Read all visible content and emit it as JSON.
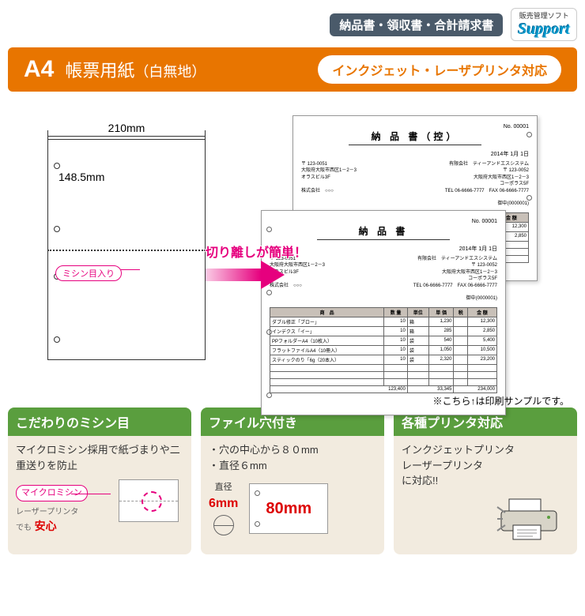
{
  "header": {
    "badge": "納品書・領収書・合計請求書",
    "support_small": "販売管理ソフト",
    "support_text": "Support"
  },
  "title": {
    "main": "A4",
    "sub": "帳票用紙",
    "small": "（白無地）",
    "pill": "インクジェット・レーザプリンタ対応"
  },
  "diagram": {
    "width_label": "210mm",
    "height_label": "148.5mm",
    "perforation_label": "ミシン目入り"
  },
  "arrow": {
    "label": "切り離しが簡単！"
  },
  "sample": {
    "doc1_title": "納 品 書（控）",
    "doc2_title": "納 品 書",
    "doc_no": "No. 00001",
    "doc_date": "2014年 1月 1日",
    "addr_left": "〒 123-0051\n大阪府大阪市西区1－2－3\nオラスビル3F\n\n株式会社　○○○",
    "addr_right": "有限会社　ティーアンドエスシステム\n〒 123-0052\n大阪府大阪市西区1－2－3\nコーポラス5F\nTEL 06-6666-7777　FAX 06-6666-7777\n\n御中(0000001)",
    "headers": [
      "商　品",
      "数 量",
      "単位",
      "単 価",
      "税",
      "金 額"
    ],
    "rows1": [
      [
        "ダブル修正「ブロー」",
        "10",
        "箱",
        "1,230",
        "",
        "12,300"
      ],
      [
        "レッドテス「イー」",
        "10",
        "箱",
        "285",
        "",
        "2,850"
      ]
    ],
    "rows2": [
      [
        "ダブル修正「ブロー」",
        "10",
        "箱",
        "1,230",
        "",
        "12,300"
      ],
      [
        "インデクス「イー」",
        "10",
        "箱",
        "285",
        "",
        "2,850"
      ],
      [
        "PPフォルダーA4（10枚入）",
        "10",
        "袋",
        "540",
        "",
        "5,400"
      ],
      [
        "フラットファイルA4（10冊入）",
        "10",
        "袋",
        "1,050",
        "",
        "10,500"
      ],
      [
        "スティックのり「6g（20本入）",
        "10",
        "袋",
        "2,320",
        "",
        "23,200"
      ]
    ],
    "totals": [
      "",
      "",
      "",
      "",
      "123,400",
      "",
      "33,345",
      "",
      "234,000"
    ],
    "note": "※こちら↑は印刷サンプルです。"
  },
  "features": {
    "f1": {
      "title": "こだわりのミシン目",
      "body": "マイクロミシン採用で紙づまりや二重送りを防止",
      "micro_label": "マイクロミシン",
      "laser_text": "レーザープリンタ",
      "demo": "でも",
      "anshin": "安心"
    },
    "f2": {
      "title": "ファイル穴付き",
      "line1": "・穴の中心から８０mm",
      "line2": "・直径６mm",
      "dim_label": "直径",
      "dim6": "6mm",
      "dim80": "80mm"
    },
    "f3": {
      "title": "各種プリンタ対応",
      "body": "インクジェットプリンタ\nレーザープリンタ\nに対応!!"
    }
  }
}
